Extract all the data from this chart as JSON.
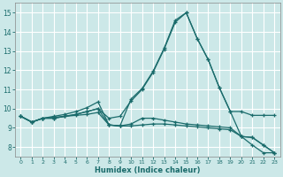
{
  "xlabel": "Humidex (Indice chaleur)",
  "bg_color": "#cce8e8",
  "grid_color": "#b0d0d0",
  "line_color": "#1a6b6b",
  "xlim": [
    -0.5,
    23.5
  ],
  "ylim": [
    7.5,
    15.5
  ],
  "xticks": [
    0,
    1,
    2,
    3,
    4,
    5,
    6,
    7,
    8,
    9,
    10,
    11,
    12,
    13,
    14,
    15,
    16,
    17,
    18,
    19,
    20,
    21,
    22,
    23
  ],
  "yticks": [
    8,
    9,
    10,
    11,
    12,
    13,
    14,
    15
  ],
  "curve1_y": [
    9.6,
    9.3,
    9.5,
    9.5,
    9.6,
    9.7,
    9.85,
    10.0,
    9.5,
    9.6,
    10.4,
    11.0,
    11.9,
    13.1,
    14.5,
    15.0,
    13.65,
    12.55,
    11.1,
    9.85,
    9.85,
    9.65,
    9.65,
    9.65
  ],
  "curve2_y": [
    9.6,
    9.3,
    9.5,
    9.5,
    9.6,
    9.7,
    9.85,
    10.0,
    9.15,
    9.1,
    9.2,
    9.5,
    9.5,
    9.4,
    9.3,
    9.2,
    9.15,
    9.1,
    9.05,
    9.0,
    8.55,
    8.5,
    8.1,
    7.7
  ],
  "curve3_y": [
    9.6,
    9.3,
    9.5,
    9.55,
    9.6,
    9.65,
    9.7,
    9.8,
    9.15,
    9.1,
    9.1,
    9.15,
    9.2,
    9.2,
    9.15,
    9.1,
    9.05,
    9.0,
    8.95,
    8.9,
    8.55,
    8.5,
    8.1,
    7.7
  ],
  "curve4_y": [
    9.6,
    9.3,
    9.5,
    9.6,
    9.7,
    9.85,
    10.05,
    10.35,
    9.15,
    9.1,
    10.5,
    11.05,
    11.95,
    13.15,
    14.6,
    15.0,
    13.65,
    12.55,
    11.1,
    9.85,
    8.55,
    8.1,
    7.7,
    7.7
  ]
}
